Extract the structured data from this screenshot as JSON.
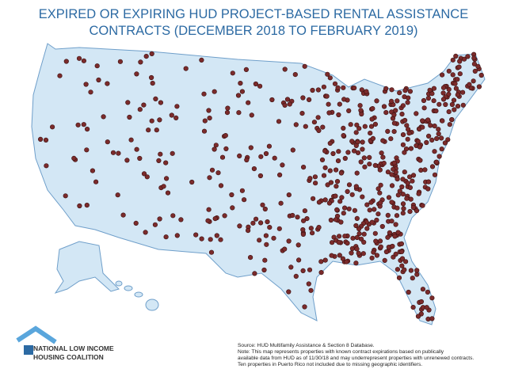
{
  "title": [
    "EXPIRED OR EXPIRING HUD PROJECT-BASED RENTAL ASSISTANCE",
    "CONTRACTS (DECEMBER 2018 TO FEBRUARY 2019)"
  ],
  "logo": [
    "NATIONAL LOW INCOME",
    "HOUSING COALITION"
  ],
  "note": [
    "Source: HUD Multifamily Assistance & Section 8 Database.",
    "Note: This map represents properties with known contract expirations based on publically",
    "available data from HUD as of 11/30/18 and may underrepresent properties with unrenewed contracts.",
    "Ten properties in Puerto Rico not included due to missing geographic identifiers."
  ]
}
